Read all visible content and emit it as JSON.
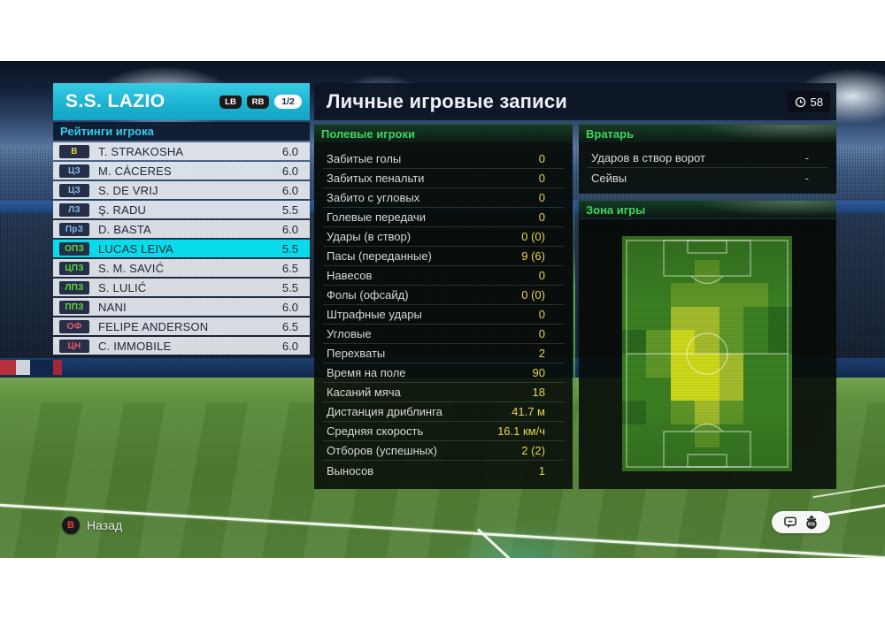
{
  "team_panel": {
    "team_name": "S.S. LAZIO",
    "buttons": {
      "lb": "LB",
      "rb": "RB",
      "page": "1/2"
    },
    "list_header": "Рейтинги игрока",
    "players": [
      {
        "pos": "В",
        "pos_type": "gk",
        "name": "T. STRAKOSHA",
        "rating": "6.0",
        "selected": false
      },
      {
        "pos": "ЦЗ",
        "pos_type": "df",
        "name": "M. CÁCERES",
        "rating": "6.0",
        "selected": false
      },
      {
        "pos": "ЦЗ",
        "pos_type": "df",
        "name": "S. DE VRIJ",
        "rating": "6.0",
        "selected": false
      },
      {
        "pos": "ЛЗ",
        "pos_type": "df",
        "name": "Ş. RADU",
        "rating": "5.5",
        "selected": false
      },
      {
        "pos": "ПрЗ",
        "pos_type": "df",
        "name": "D. BASTA",
        "rating": "6.0",
        "selected": false
      },
      {
        "pos": "ОПЗ",
        "pos_type": "mf",
        "name": "LUCAS LEIVA",
        "rating": "5.5",
        "selected": true
      },
      {
        "pos": "ЦПЗ",
        "pos_type": "mf",
        "name": "S. M. SAVIĆ",
        "rating": "6.5",
        "selected": false
      },
      {
        "pos": "ЛПЗ",
        "pos_type": "mf",
        "name": "S. LULIĆ",
        "rating": "5.5",
        "selected": false
      },
      {
        "pos": "ППЗ",
        "pos_type": "mf",
        "name": "NANI",
        "rating": "6.0",
        "selected": false
      },
      {
        "pos": "ОФ",
        "pos_type": "fw",
        "name": "FELIPE ANDERSON",
        "rating": "6.5",
        "selected": false
      },
      {
        "pos": "ЦН",
        "pos_type": "fw",
        "name": "C. IMMOBILE",
        "rating": "6.0",
        "selected": false
      }
    ]
  },
  "records_panel": {
    "title": "Личные игровые записи",
    "match_time": "58",
    "field_players": {
      "header": "Полевые игроки",
      "stats": [
        {
          "label": "Забитые голы",
          "value": "0"
        },
        {
          "label": "Забитых пенальти",
          "value": "0"
        },
        {
          "label": "Забито с угловых",
          "value": "0"
        },
        {
          "label": "Голевые передачи",
          "value": "0"
        },
        {
          "label": "Удары (в створ)",
          "value": "0 (0)"
        },
        {
          "label": "Пасы (переданные)",
          "value": "9 (6)"
        },
        {
          "label": "Навесов",
          "value": "0"
        },
        {
          "label": "Фолы (офсайд)",
          "value": "0 (0)"
        },
        {
          "label": "Штрафные удары",
          "value": "0"
        },
        {
          "label": "Угловые",
          "value": "0"
        },
        {
          "label": "Перехваты",
          "value": "2"
        },
        {
          "label": "Время на поле",
          "value": "90"
        },
        {
          "label": "Касаний мяча",
          "value": "18"
        },
        {
          "label": "Дистанция дриблинга",
          "value": "41.7 м"
        },
        {
          "label": "Средняя скорость",
          "value": "16.1 км/ч"
        },
        {
          "label": "Отборов (успешных)",
          "value": "2 (2)"
        },
        {
          "label": "Выносов",
          "value": "1"
        }
      ]
    },
    "goalkeeper": {
      "header": "Вратарь",
      "stats": [
        {
          "label": "Ударов в створ ворот",
          "value": "-"
        },
        {
          "label": "Сейвы",
          "value": "-"
        }
      ]
    },
    "zone": {
      "header": "Зона игры",
      "heatmap": {
        "rows": 10,
        "cols": 7,
        "palette": [
          "#2a681c",
          "#3a7e22",
          "#5f9628",
          "#a2ba2c",
          "#cdd71a"
        ],
        "cells": [
          [
            1,
            1,
            1,
            1,
            1,
            1,
            1
          ],
          [
            1,
            1,
            1,
            2,
            1,
            1,
            1
          ],
          [
            1,
            1,
            2,
            2,
            2,
            2,
            1
          ],
          [
            1,
            1,
            3,
            3,
            2,
            1,
            0
          ],
          [
            0,
            2,
            4,
            3,
            2,
            1,
            0
          ],
          [
            1,
            2,
            4,
            4,
            3,
            1,
            1
          ],
          [
            1,
            1,
            4,
            4,
            3,
            1,
            1
          ],
          [
            0,
            1,
            2,
            3,
            2,
            1,
            1
          ],
          [
            1,
            1,
            1,
            2,
            1,
            1,
            1
          ],
          [
            1,
            1,
            1,
            1,
            1,
            1,
            1
          ]
        ]
      }
    }
  },
  "footer": {
    "back_button": "B",
    "back_label": "Назад",
    "rs_label": "RS"
  },
  "icons": {
    "clock": "clock-icon",
    "chat": "chat-bubble-icon",
    "rs": "right-stick-icon",
    "back": "b-button-icon"
  },
  "colors": {
    "accent_cyan": "#1cb4d2",
    "selected_row": "#08dcea",
    "header_green_text": "#41d35f",
    "stat_value_yellow": "#e6d54b",
    "badge_gk": "#e3cf35",
    "badge_df": "#86b9e8",
    "badge_mf": "#5fd83c",
    "badge_fw": "#ef5a64"
  }
}
